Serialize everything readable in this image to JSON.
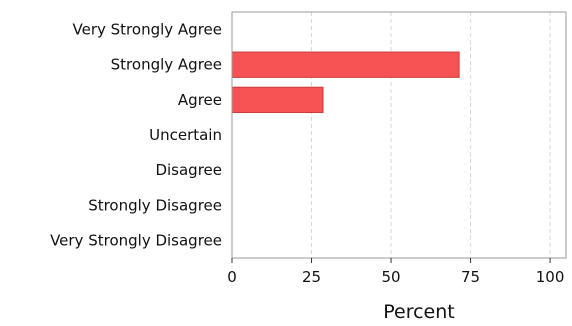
{
  "chart_data": {
    "type": "bar",
    "orientation": "horizontal",
    "title": "",
    "xlabel": "Percent",
    "ylabel": "",
    "categories": [
      "Very Strongly Agree",
      "Strongly Agree",
      "Agree",
      "Uncertain",
      "Disagree",
      "Strongly Disagree",
      "Very Strongly Disagree"
    ],
    "values": [
      0,
      71.4,
      28.6,
      0,
      0,
      0,
      0
    ],
    "xlim": [
      0,
      105
    ],
    "xticks": [
      "0",
      "25",
      "50",
      "75",
      "100"
    ],
    "grid": "vertical dashed",
    "legend": "none",
    "colors": {
      "bar": "#f75254",
      "bar_edge": "#cc3b3d",
      "grid": "#d8d8d8",
      "frame": "#999999"
    }
  }
}
